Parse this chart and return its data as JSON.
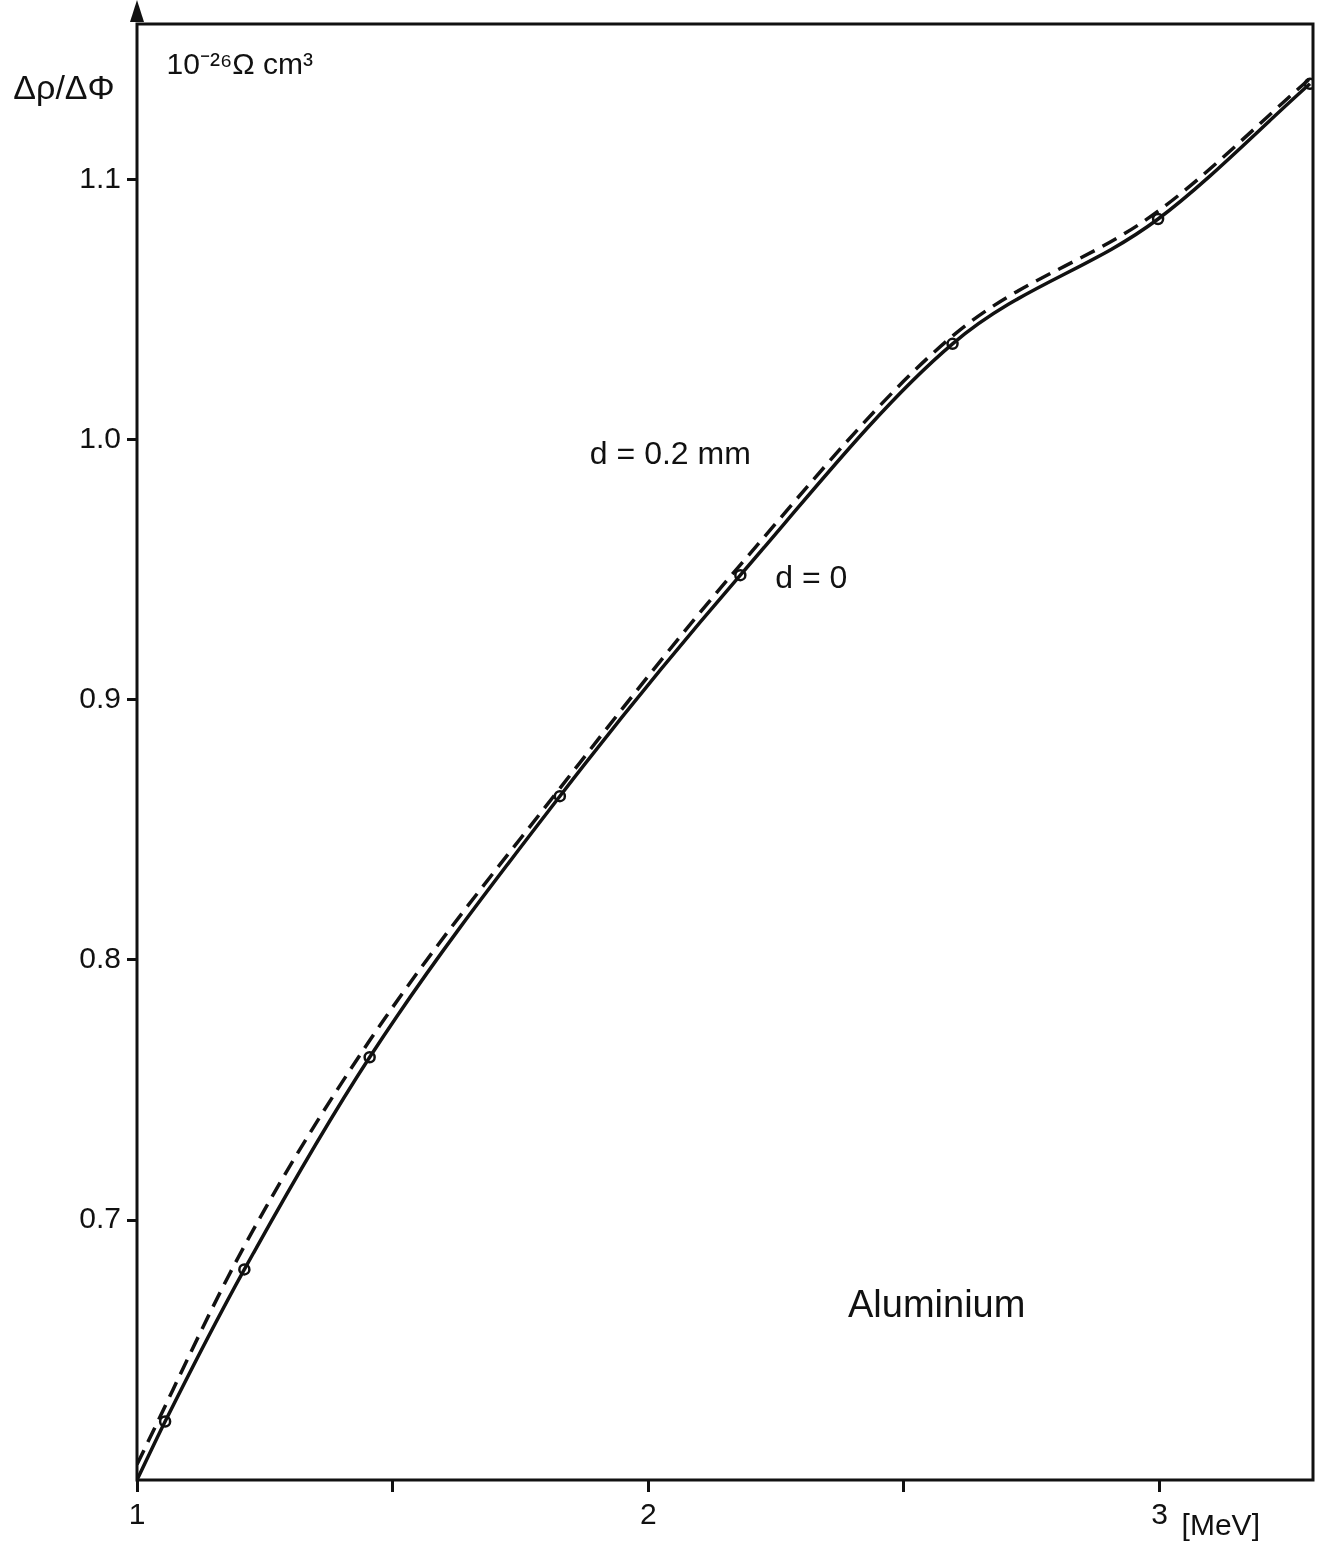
{
  "chart_data": {
    "type": "line",
    "ylabel": "Δρ/ΔΦ",
    "xlabel": "[MeV]",
    "xlim": [
      1,
      3.3
    ],
    "ylim": [
      0.6,
      1.16
    ],
    "xticks": [
      1,
      {
        "value": 1.5,
        "label": null
      },
      2,
      {
        "value": 2.5,
        "label": null
      },
      3
    ],
    "yticks": [
      {
        "value": 0.7,
        "label": "0.7"
      },
      {
        "value": 0.8,
        "label": "0.8"
      },
      {
        "value": 0.9,
        "label": "0.9"
      },
      {
        "value": 1,
        "label": "1.0"
      },
      {
        "value": 1.1,
        "label": "1.1"
      }
    ],
    "grid": false,
    "legend": false,
    "series": [
      {
        "name": "d = 0.2 mm",
        "color": "#111111",
        "line_style": "dashed",
        "marker": "none",
        "x": [
          1.0,
          1.21,
          1.455,
          1.827,
          2.18,
          2.595,
          2.997,
          3.294
        ],
        "values": [
          0.606,
          0.69,
          0.769,
          0.866,
          0.952,
          1.04,
          1.088,
          1.139
        ]
      },
      {
        "name": "d = 0",
        "color": "#111111",
        "line_style": "solid",
        "marker": "none",
        "x": [
          1.0,
          1.055,
          1.21,
          1.455,
          1.827,
          2.18,
          2.595,
          2.997,
          3.294
        ],
        "values": [
          0.6,
          0.6225,
          0.681,
          0.7626,
          0.863,
          0.948,
          1.037,
          1.085,
          1.137
        ]
      },
      {
        "type": "scatter",
        "color": "#111111",
        "marker": "circle",
        "x": [
          1.055,
          1.21,
          1.455,
          1.827,
          2.18,
          2.595,
          2.997,
          3.294
        ],
        "values": [
          0.6225,
          0.681,
          0.7626,
          0.863,
          0.948,
          1.037,
          1.085,
          1.137
        ]
      }
    ],
    "annotations": [
      "10⁻²⁶Ω cm³",
      "Aluminium"
    ]
  }
}
